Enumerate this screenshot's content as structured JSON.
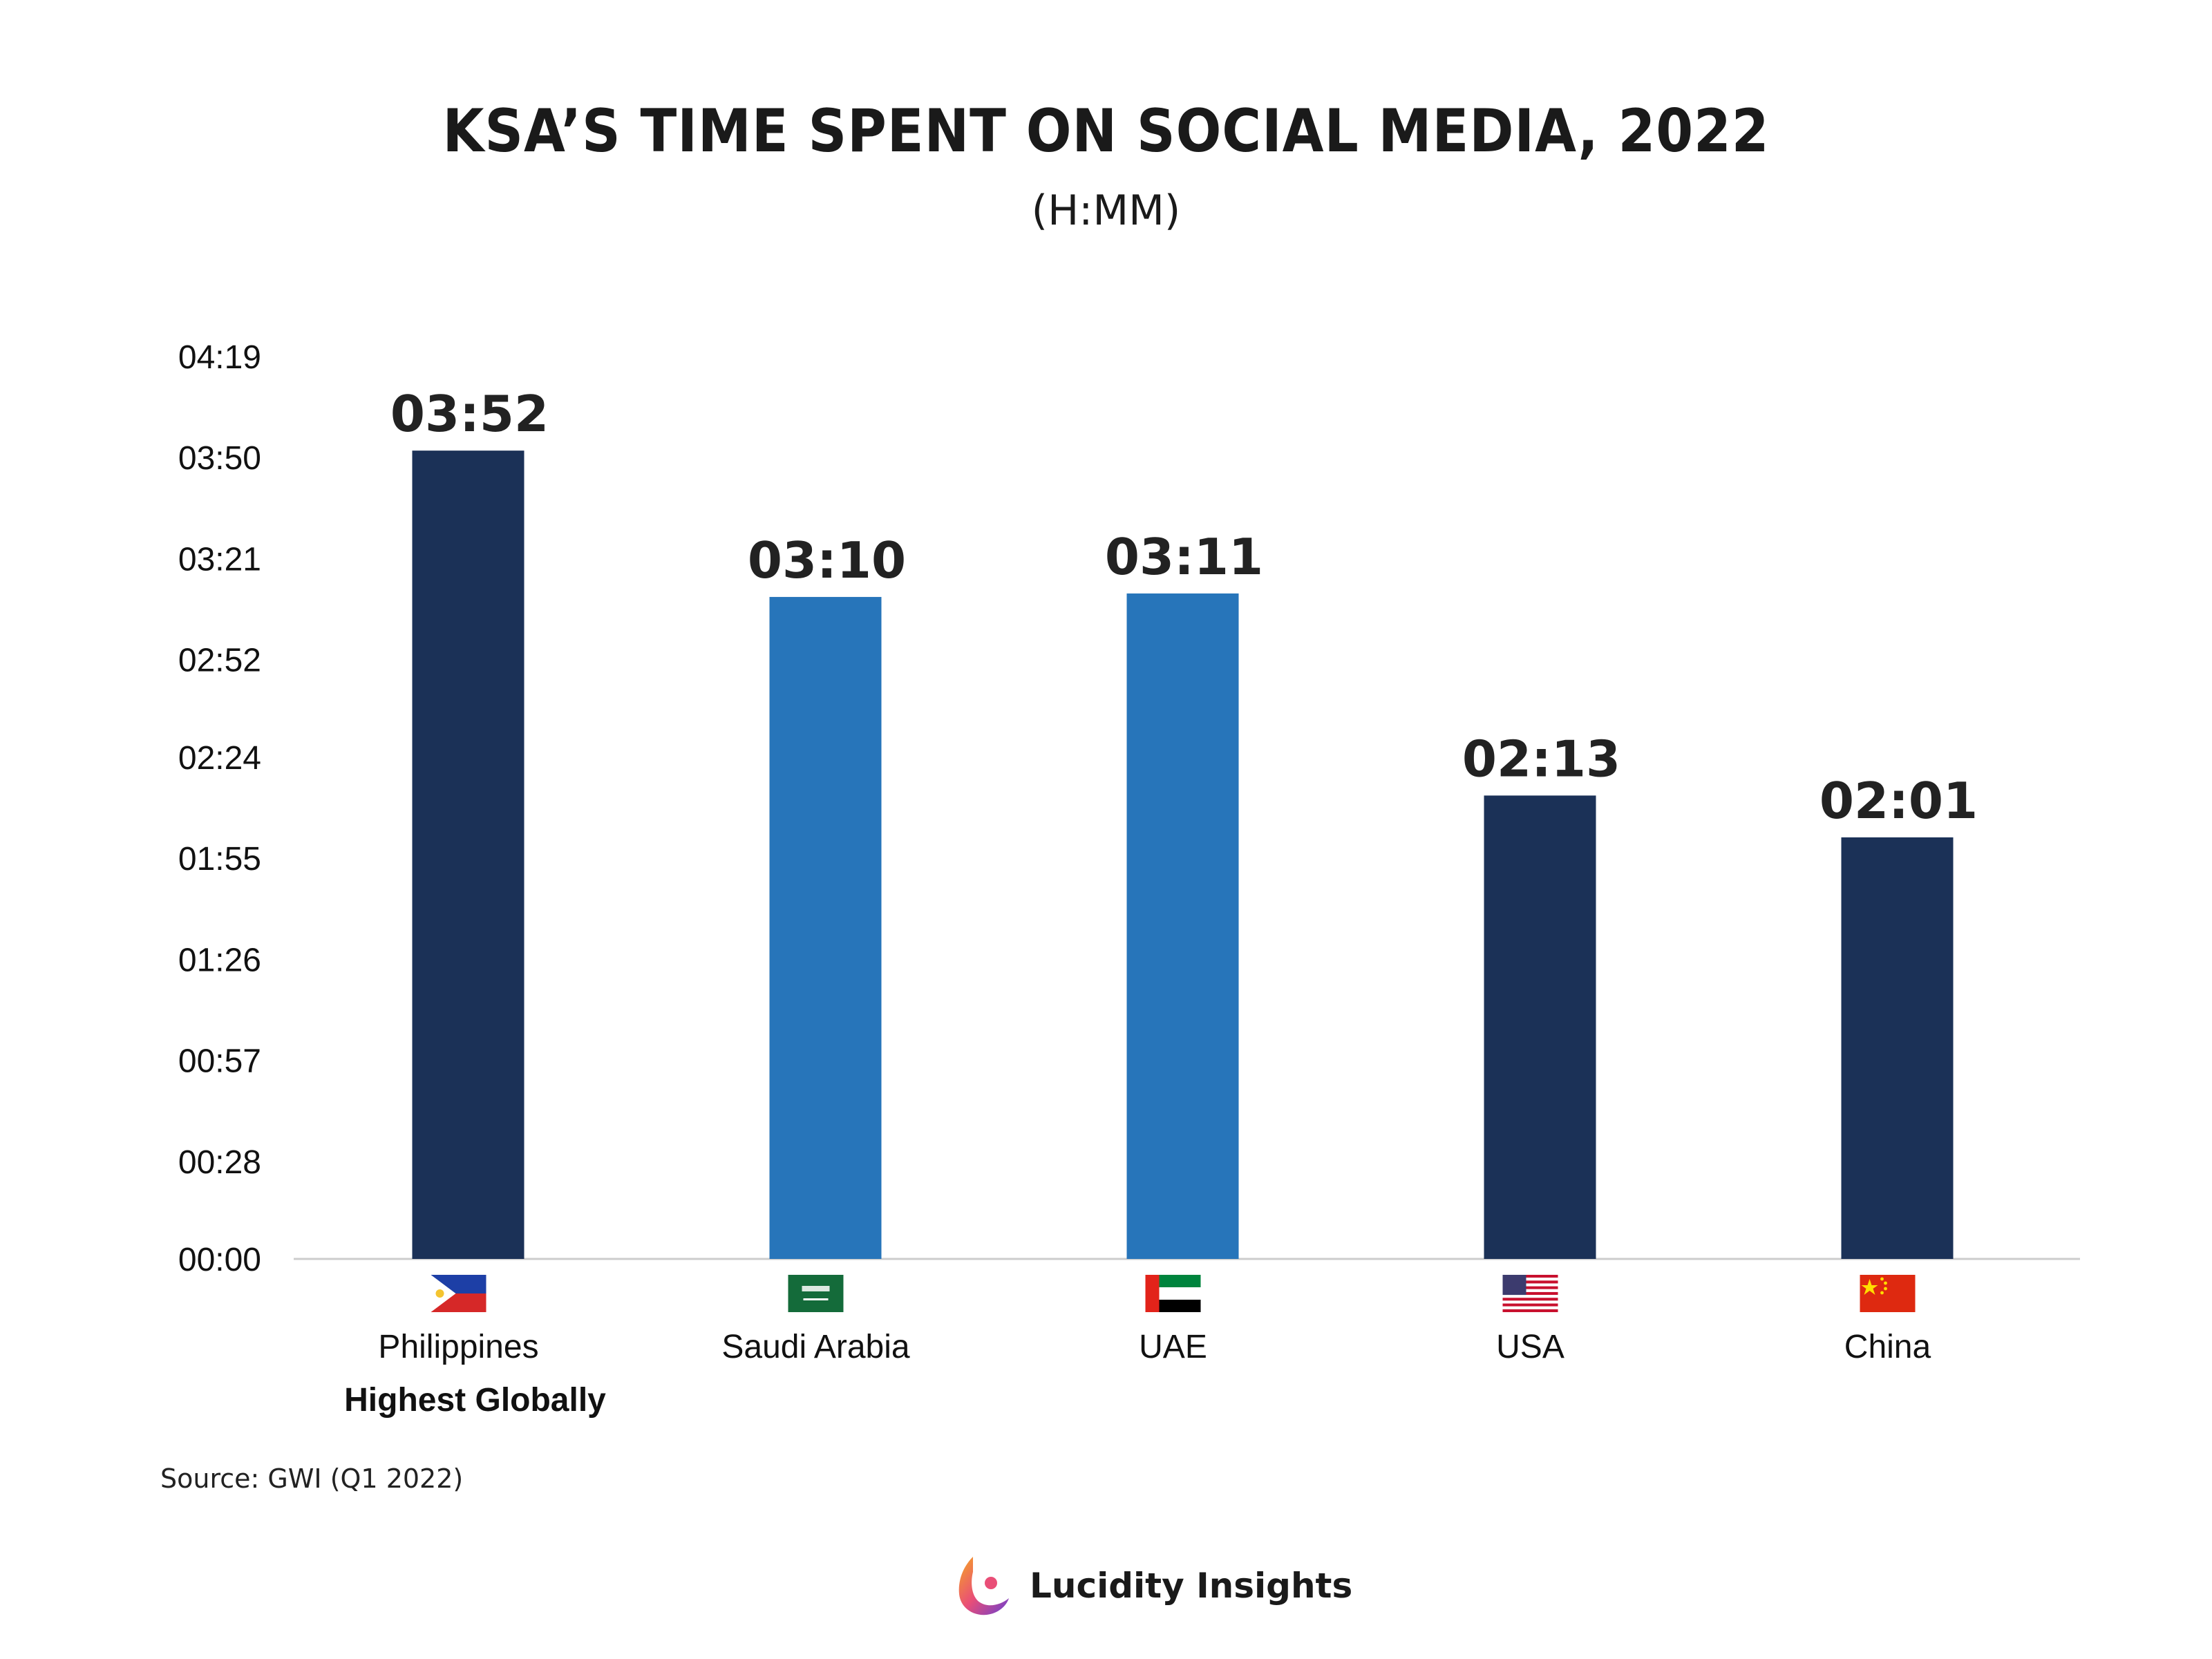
{
  "header": {
    "title": "KSA’S TIME SPENT ON SOCIAL MEDIA, 2022",
    "subtitle": "(H:MM)"
  },
  "chart_data": {
    "type": "bar",
    "title": "KSA’S TIME SPENT ON SOCIAL MEDIA, 2022",
    "subtitle": "(H:MM)",
    "xlabel": "",
    "ylabel": "",
    "unit": "H:MM",
    "categories": [
      "Philippines",
      "Saudi Arabia",
      "UAE",
      "USA",
      "China"
    ],
    "category_note": {
      "index": 0,
      "text": "Highest Globally"
    },
    "values": [
      "03:52",
      "03:10",
      "03:11",
      "02:13",
      "02:01"
    ],
    "y_ticks": [
      "00:00",
      "00:28",
      "00:57",
      "01:26",
      "01:55",
      "02:24",
      "02:52",
      "03:21",
      "03:50",
      "04:19"
    ],
    "ylim": [
      "00:00",
      "04:19"
    ],
    "bar_colors": [
      "#1b3157",
      "#2775ba",
      "#2775ba",
      "#1b3157",
      "#1b3157"
    ],
    "flags": [
      "philippines-flag",
      "saudi-arabia-flag",
      "uae-flag",
      "usa-flag",
      "china-flag"
    ],
    "grid": false,
    "legend": "none"
  },
  "footer": {
    "source": "Source: GWI (Q1 2022)",
    "brand": "Lucidity Insights",
    "brand_icon": "lucidity-logo-icon"
  },
  "colors": {
    "dark_bar": "#1b3157",
    "light_bar": "#2775ba",
    "axis": "#cccccc"
  }
}
